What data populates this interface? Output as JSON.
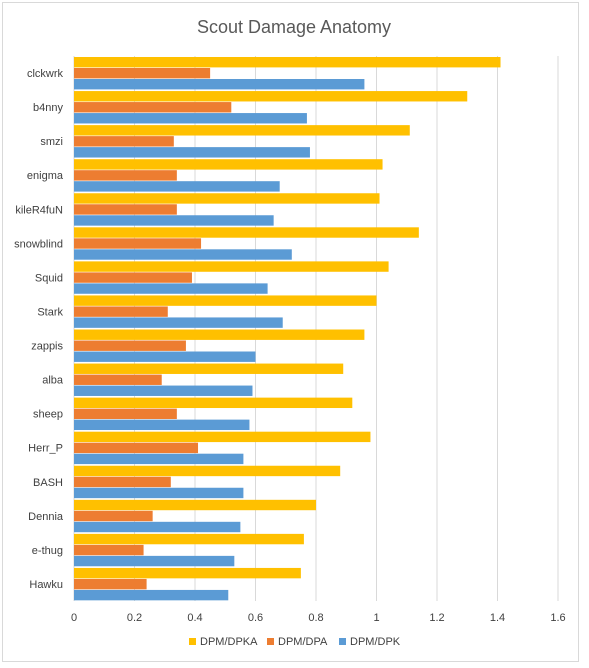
{
  "chart_data": {
    "type": "bar",
    "orientation": "horizontal",
    "title": "Scout Damage Anatomy",
    "xlabel": "",
    "ylabel": "",
    "xlim": [
      0,
      1.6
    ],
    "x_ticks": [
      "0",
      "0.2",
      "0.4",
      "0.6",
      "0.8",
      "1",
      "1.2",
      "1.4",
      "1.6"
    ],
    "grid": true,
    "legend_position": "bottom",
    "categories": [
      "clckwrk",
      "b4nny",
      "smzi",
      "enigma",
      "kileR4fuN",
      "snowblind",
      "Squid",
      "Stark",
      "zappis",
      "alba",
      "sheep",
      "Herr_P",
      "BASH",
      "Dennia",
      "e-thug",
      "Hawku"
    ],
    "series": [
      {
        "name": "DPM/DPKA",
        "color": "#FFC000",
        "values": [
          1.41,
          1.3,
          1.11,
          1.02,
          1.01,
          1.14,
          1.04,
          1.0,
          0.96,
          0.89,
          0.92,
          0.98,
          0.88,
          0.8,
          0.76,
          0.75
        ]
      },
      {
        "name": "DPM/DPA",
        "color": "#ED7D31",
        "values": [
          0.45,
          0.52,
          0.33,
          0.34,
          0.34,
          0.42,
          0.39,
          0.31,
          0.37,
          0.29,
          0.34,
          0.41,
          0.32,
          0.26,
          0.23,
          0.24
        ]
      },
      {
        "name": "DPM/DPK",
        "color": "#5B9BD5",
        "values": [
          0.96,
          0.77,
          0.78,
          0.68,
          0.66,
          0.72,
          0.64,
          0.69,
          0.6,
          0.59,
          0.58,
          0.56,
          0.56,
          0.55,
          0.53,
          0.51
        ]
      }
    ]
  }
}
